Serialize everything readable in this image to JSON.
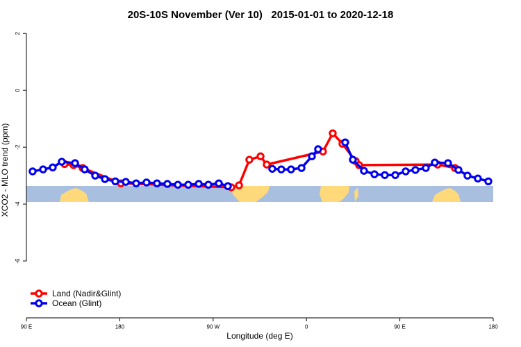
{
  "chart_data": {
    "type": "line",
    "title": "20S-10S November (Ver 10)   2015-01-01 to 2020-12-18",
    "x_label": "Longitude (deg E)",
    "y_label": "XCO2 - MLO trend (ppm)",
    "xlim": [
      90,
      540
    ],
    "ylim": [
      -8,
      2.2
    ],
    "xticks": [
      {
        "value": 90,
        "label": "90 E"
      },
      180,
      {
        "value": 270,
        "label": "90 W"
      },
      {
        "value": 360,
        "label": "0"
      },
      {
        "value": 450,
        "label": "90 E"
      },
      {
        "value": 540,
        "label": "180"
      }
    ],
    "yticks": [
      2,
      0,
      -2,
      -4,
      -6
    ],
    "legend": "bottom-left",
    "series": [
      {
        "name": "Land (Nadir&Glint)",
        "color": "#ff0000",
        "x": [
          126.8,
          135.5,
          144.2,
          181.1,
          287.5,
          295.0,
          304.9,
          315.7,
          321.7,
          375.9,
          385.3,
          394.7,
          407.4,
          410.7,
          486.4,
          503.1
        ],
        "values": [
          -2.59,
          -2.63,
          -2.73,
          -3.27,
          -3.41,
          -3.34,
          -2.44,
          -2.32,
          -2.61,
          -2.15,
          -1.51,
          -1.88,
          -2.49,
          -2.63,
          -2.61,
          -2.73
        ]
      },
      {
        "name": "Ocean (Glint)",
        "color": "#0000ee",
        "x": [
          96.0,
          106.1,
          115.4,
          124.1,
          136.9,
          146.2,
          156.3,
          165.7,
          175.7,
          185.8,
          195.8,
          205.8,
          215.9,
          225.9,
          236.0,
          246.0,
          256.1,
          265.4,
          275.5,
          284.2,
          null,
          327.0,
          335.7,
          345.1,
          355.2,
          365.2,
          371.2,
          null,
          397.3,
          404.7,
          415.4,
          425.5,
          435.5,
          445.6,
          455.6,
          465.0,
          475.0,
          483.7,
          496.4,
          506.5,
          515.2,
          525.2,
          535.3
        ],
        "values": [
          -2.85,
          -2.78,
          -2.71,
          -2.51,
          -2.56,
          -2.78,
          -3.0,
          -3.12,
          -3.2,
          -3.22,
          -3.27,
          -3.24,
          -3.27,
          -3.29,
          -3.32,
          -3.32,
          -3.29,
          -3.32,
          -3.27,
          -3.37,
          null,
          -2.76,
          -2.78,
          -2.78,
          -2.73,
          -2.32,
          -2.07,
          null,
          -1.83,
          -2.44,
          -2.83,
          -2.95,
          -2.98,
          -2.98,
          -2.85,
          -2.8,
          -2.73,
          -2.54,
          -2.56,
          -2.8,
          -3.0,
          -3.1,
          -3.2
        ]
      }
    ]
  }
}
